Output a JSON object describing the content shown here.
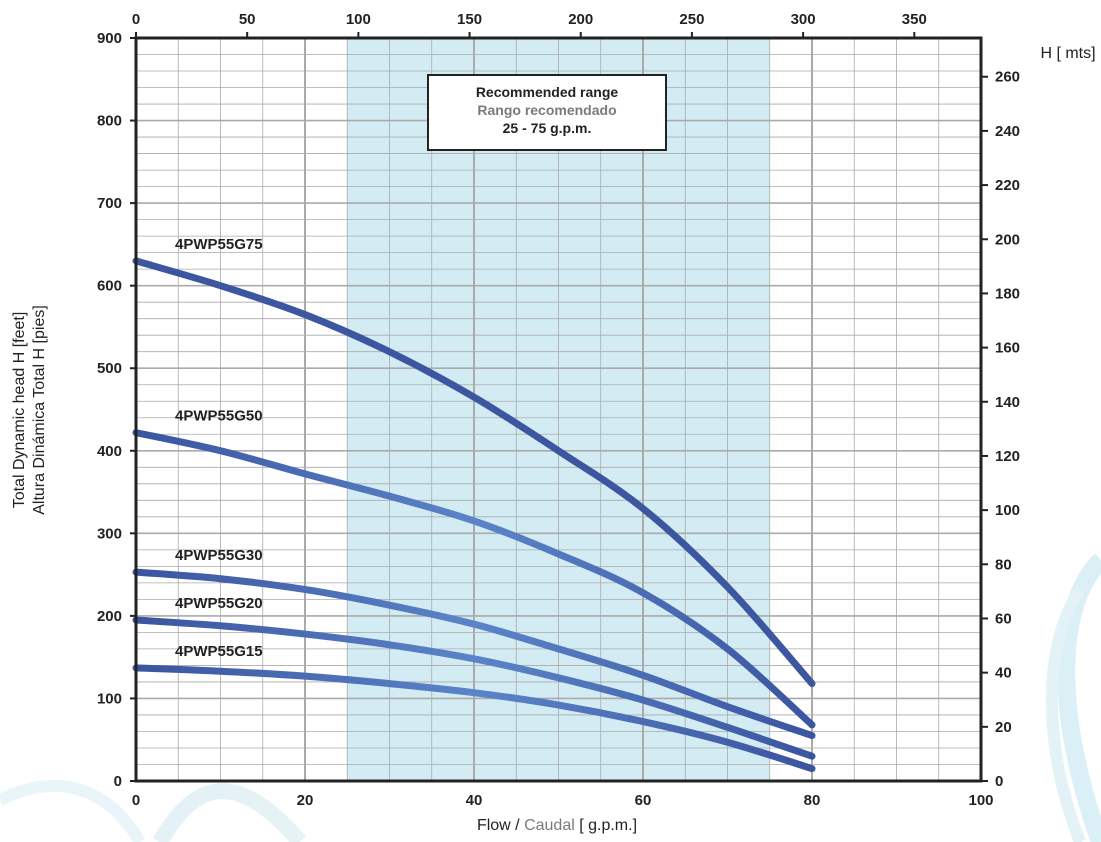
{
  "chart_data": {
    "type": "line",
    "xlabel_main": "Flow",
    "xlabel_sep": " / ",
    "xlabel_alt": "Caudal",
    "xlabel_unit": " [ g.p.m.]",
    "ylabel_line1": "Total Dynamic head H [feet]",
    "ylabel_line2": "Altura Dinámica Total H [pies]",
    "y2label": "H [ mts]",
    "xlim": [
      0,
      100
    ],
    "ylim": [
      0,
      900
    ],
    "top_axis_lim": [
      0,
      380
    ],
    "right_axis_lim": [
      0,
      274.3
    ],
    "x_ticks": [
      0,
      20,
      40,
      60,
      80,
      100
    ],
    "y_ticks": [
      0,
      100,
      200,
      300,
      400,
      500,
      600,
      700,
      800,
      900
    ],
    "top_ticks": [
      0,
      50,
      100,
      150,
      200,
      250,
      300,
      350
    ],
    "right_ticks": [
      0,
      20,
      40,
      60,
      80,
      100,
      120,
      140,
      160,
      180,
      200,
      220,
      240,
      260
    ],
    "grid": true,
    "recommended_range": {
      "x_from": 25,
      "x_to": 75,
      "line1": "Recommended range",
      "line2": "Rango recomendado",
      "line3": "25 - 75 g.p.m."
    },
    "series": [
      {
        "name": "4PWP55G75",
        "x": [
          0,
          10,
          20,
          30,
          40,
          50,
          60,
          70,
          80
        ],
        "y": [
          630,
          600,
          565,
          520,
          465,
          400,
          330,
          235,
          118
        ]
      },
      {
        "name": "4PWP55G50",
        "x": [
          0,
          10,
          20,
          30,
          40,
          50,
          60,
          70,
          80
        ],
        "y": [
          422,
          400,
          372,
          345,
          315,
          275,
          228,
          160,
          68
        ]
      },
      {
        "name": "4PWP55G30",
        "x": [
          0,
          10,
          20,
          30,
          40,
          50,
          60,
          70,
          80
        ],
        "y": [
          253,
          245,
          232,
          213,
          190,
          160,
          128,
          90,
          55
        ]
      },
      {
        "name": "4PWP55G20",
        "x": [
          0,
          10,
          20,
          30,
          40,
          50,
          60,
          70,
          80
        ],
        "y": [
          195,
          188,
          178,
          165,
          148,
          125,
          98,
          65,
          30
        ]
      },
      {
        "name": "4PWP55G15",
        "x": [
          0,
          10,
          20,
          30,
          40,
          50,
          60,
          70,
          80
        ],
        "y": [
          137,
          133,
          127,
          118,
          107,
          92,
          72,
          47,
          15
        ]
      }
    ],
    "colors": {
      "shade": "#d3ecf4",
      "grid": "#aaaaaa",
      "frame": "#222222",
      "curve_dark": "#3d56a0",
      "curve_light": "#4e79c0",
      "alt_text": "#7a7a7a"
    }
  }
}
